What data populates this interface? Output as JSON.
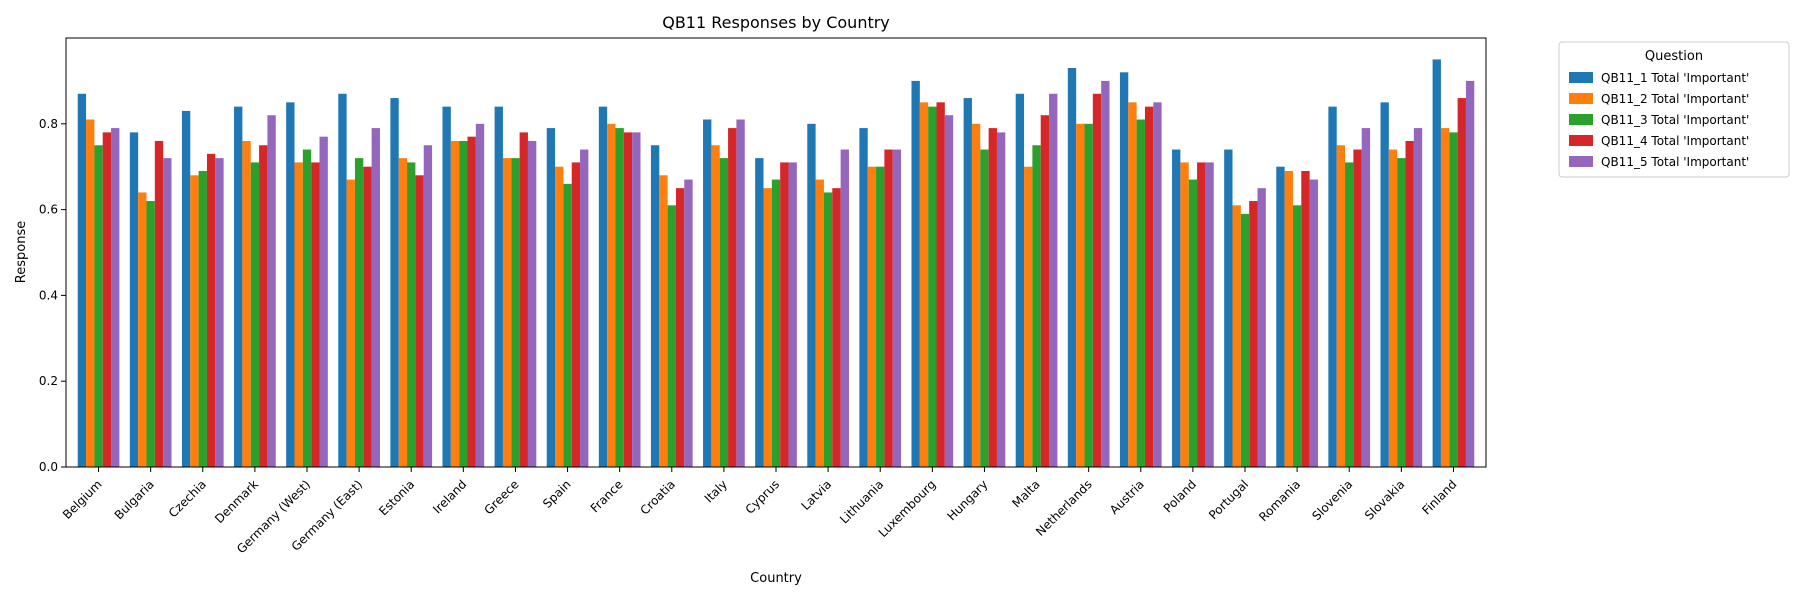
{
  "chart_data": {
    "type": "bar",
    "title": "QB11 Responses by Country",
    "xlabel": "Country",
    "ylabel": "Response",
    "ylim": [
      0,
      1.0
    ],
    "yticks": [
      "0.0",
      "0.2",
      "0.4",
      "0.6",
      "0.8"
    ],
    "legend": {
      "title": "Question",
      "placement": "outside-top-right"
    },
    "categories": [
      "Belgium",
      "Bulgaria",
      "Czechia",
      "Denmark",
      "Germany (West)",
      "Germany (East)",
      "Estonia",
      "Ireland",
      "Greece",
      "Spain",
      "France",
      "Croatia",
      "Italy",
      "Cyprus",
      "Latvia",
      "Lithuania",
      "Luxembourg",
      "Hungary",
      "Malta",
      "Netherlands",
      "Austria",
      "Poland",
      "Portugal",
      "Romania",
      "Slovenia",
      "Slovakia",
      "Finland"
    ],
    "series": [
      {
        "name": "QB11_1 Total 'Important'",
        "color": "#1f77b4",
        "values": [
          0.87,
          0.78,
          0.83,
          0.84,
          0.85,
          0.87,
          0.86,
          0.84,
          0.84,
          0.79,
          0.84,
          0.75,
          0.81,
          0.72,
          0.8,
          0.79,
          0.9,
          0.86,
          0.87,
          0.93,
          0.92,
          0.74,
          0.74,
          0.7,
          0.84,
          0.85,
          0.95
        ]
      },
      {
        "name": "QB11_2 Total 'Important'",
        "color": "#ff7f0e",
        "values": [
          0.81,
          0.64,
          0.68,
          0.76,
          0.71,
          0.67,
          0.72,
          0.76,
          0.72,
          0.7,
          0.8,
          0.68,
          0.75,
          0.65,
          0.67,
          0.7,
          0.85,
          0.8,
          0.7,
          0.8,
          0.85,
          0.71,
          0.61,
          0.69,
          0.75,
          0.74,
          0.79
        ]
      },
      {
        "name": "QB11_3 Total 'Important'",
        "color": "#2ca02c",
        "values": [
          0.75,
          0.62,
          0.69,
          0.71,
          0.74,
          0.72,
          0.71,
          0.76,
          0.72,
          0.66,
          0.79,
          0.61,
          0.72,
          0.67,
          0.64,
          0.7,
          0.84,
          0.74,
          0.75,
          0.8,
          0.81,
          0.67,
          0.59,
          0.61,
          0.71,
          0.72,
          0.78
        ]
      },
      {
        "name": "QB11_4 Total 'Important'",
        "color": "#d62728",
        "values": [
          0.78,
          0.76,
          0.73,
          0.75,
          0.71,
          0.7,
          0.68,
          0.77,
          0.78,
          0.71,
          0.78,
          0.65,
          0.79,
          0.71,
          0.65,
          0.74,
          0.85,
          0.79,
          0.82,
          0.87,
          0.84,
          0.71,
          0.62,
          0.69,
          0.74,
          0.76,
          0.86
        ]
      },
      {
        "name": "QB11_5 Total 'Important'",
        "color": "#9467bd",
        "values": [
          0.79,
          0.72,
          0.72,
          0.82,
          0.77,
          0.79,
          0.75,
          0.8,
          0.76,
          0.74,
          0.78,
          0.67,
          0.81,
          0.71,
          0.74,
          0.74,
          0.82,
          0.78,
          0.87,
          0.9,
          0.85,
          0.71,
          0.65,
          0.67,
          0.79,
          0.79,
          0.9
        ]
      }
    ]
  }
}
